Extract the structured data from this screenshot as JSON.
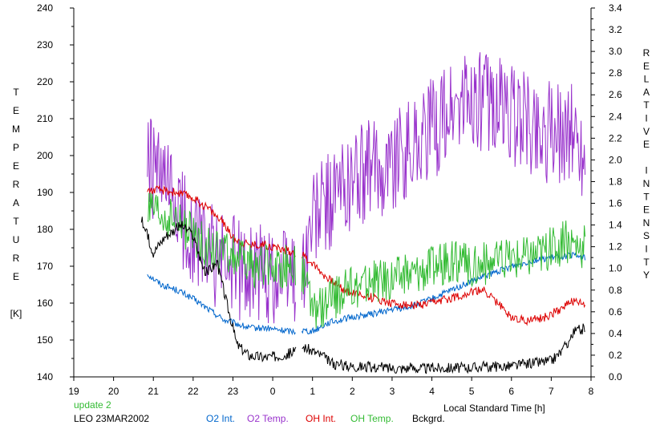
{
  "chart_data": {
    "type": "line",
    "xlabel": "Local Standard Time [h]",
    "ylabel_left": "TEMPERATURE [K]",
    "ylabel_left_lines": [
      "T",
      "E",
      "M",
      "P",
      "E",
      "R",
      "A",
      "T",
      "U",
      "R",
      "E",
      "",
      "[K]"
    ],
    "ylabel_right": "RELATIVE INTENSITY",
    "ylabel_right_lines": [
      "R",
      "E",
      "L",
      "A",
      "T",
      "I",
      "V",
      "E",
      "",
      "I",
      "N",
      "T",
      "E",
      "N",
      "S",
      "I",
      "T",
      "Y"
    ],
    "x_ticks": [
      19,
      20,
      21,
      22,
      23,
      0,
      1,
      2,
      3,
      4,
      5,
      6,
      7,
      8
    ],
    "xlim": [
      19,
      32
    ],
    "ylim_left": [
      140,
      240
    ],
    "y_ticks_left": [
      140,
      150,
      160,
      170,
      180,
      190,
      200,
      210,
      220,
      230,
      240
    ],
    "ylim_right": [
      0,
      3.4
    ],
    "y_ticks_right": [
      "0.0",
      "0.2",
      "0.4",
      "0.6",
      "0.8",
      "1.0",
      "1.2",
      "1.4",
      "1.6",
      "1.8",
      "2.0",
      "2.2",
      "2.4",
      "2.6",
      "2.8",
      "3.0",
      "3.2",
      "3.4"
    ],
    "grid": false,
    "legend_position": "bottom",
    "series": [
      {
        "name": "O2 Int.",
        "color": "#0066cc",
        "axis": "right",
        "noise": 0.03,
        "x": [
          20.85,
          21.2,
          21.6,
          22.0,
          22.4,
          22.8,
          23.0,
          23.4,
          23.8,
          24.2,
          24.5,
          24.75,
          25.0,
          25.4,
          26.0,
          26.5,
          27.0,
          27.5,
          28.0,
          28.5,
          29.0,
          29.5,
          30.0,
          30.5,
          31.0,
          31.5,
          31.85
        ],
        "y": [
          0.95,
          0.85,
          0.8,
          0.72,
          0.62,
          0.52,
          0.5,
          0.45,
          0.45,
          0.43,
          0.42,
          0.43,
          0.42,
          0.5,
          0.55,
          0.58,
          0.62,
          0.65,
          0.72,
          0.8,
          0.88,
          0.95,
          1.02,
          1.07,
          1.1,
          1.12,
          1.1
        ]
      },
      {
        "name": "O2 Temp.",
        "color": "#9933cc",
        "axis": "left",
        "noise": 14,
        "x": [
          20.85,
          21.2,
          21.6,
          22.0,
          22.5,
          23.0,
          23.5,
          24.0,
          24.5,
          24.75,
          25.0,
          25.3,
          25.7,
          26.0,
          26.5,
          27.0,
          27.5,
          28.0,
          28.5,
          29.0,
          29.5,
          30.0,
          30.5,
          31.0,
          31.5,
          31.85
        ],
        "y": [
          198,
          192,
          185,
          178,
          173,
          170,
          168,
          168,
          168,
          168,
          182,
          186,
          190,
          194,
          196,
          199,
          203,
          207,
          212,
          215,
          214,
          211,
          208,
          206,
          207,
          200
        ]
      },
      {
        "name": "OH Int.",
        "color": "#dd0000",
        "axis": "right",
        "noise": 0.04,
        "x": [
          20.85,
          21.2,
          21.6,
          22.0,
          22.4,
          22.8,
          23.0,
          23.4,
          23.8,
          24.2,
          24.5,
          24.75,
          25.0,
          25.4,
          25.8,
          26.2,
          26.6,
          27.0,
          27.4,
          27.8,
          28.2,
          28.6,
          29.0,
          29.3,
          29.6,
          30.0,
          30.4,
          30.8,
          31.2,
          31.5,
          31.85
        ],
        "y": [
          1.72,
          1.72,
          1.7,
          1.65,
          1.55,
          1.4,
          1.28,
          1.22,
          1.22,
          1.18,
          1.15,
          1.12,
          1.05,
          0.9,
          0.8,
          0.76,
          0.72,
          0.68,
          0.66,
          0.66,
          0.7,
          0.74,
          0.78,
          0.8,
          0.7,
          0.55,
          0.52,
          0.54,
          0.62,
          0.7,
          0.66
        ]
      },
      {
        "name": "OH Temp.",
        "color": "#33bb33",
        "axis": "left",
        "noise": 6,
        "x": [
          20.85,
          21.2,
          21.6,
          22.0,
          22.5,
          23.0,
          23.5,
          24.0,
          24.5,
          24.75,
          25.0,
          25.4,
          25.8,
          26.2,
          26.6,
          27.0,
          27.5,
          28.0,
          28.5,
          29.0,
          29.5,
          30.0,
          30.5,
          31.0,
          31.5,
          31.85
        ],
        "y": [
          185,
          183,
          182,
          178,
          174,
          173,
          170,
          170,
          170,
          168,
          158,
          160,
          163,
          165,
          166,
          167,
          168,
          170,
          171,
          170,
          171,
          172,
          173,
          175,
          177,
          175
        ]
      },
      {
        "name": "Bckgrd.",
        "color": "#000000",
        "axis": "right",
        "noise": 0.05,
        "x": [
          20.7,
          21.0,
          21.3,
          21.7,
          22.0,
          22.3,
          22.6,
          22.9,
          23.1,
          23.4,
          23.8,
          24.2,
          24.5,
          24.75,
          25.0,
          25.2,
          25.5,
          26.0,
          27.0,
          28.0,
          29.0,
          30.0,
          30.6,
          31.0,
          31.3,
          31.6,
          31.85
        ],
        "y": [
          1.45,
          1.15,
          1.3,
          1.4,
          1.3,
          0.95,
          1.05,
          0.6,
          0.3,
          0.2,
          0.18,
          0.2,
          0.22,
          0.28,
          0.24,
          0.2,
          0.12,
          0.1,
          0.08,
          0.08,
          0.09,
          0.1,
          0.13,
          0.15,
          0.25,
          0.42,
          0.45
        ]
      }
    ]
  },
  "legend": {
    "update_label": "update 2",
    "site_label": "LEO 23MAR2002"
  },
  "colors": {
    "update_label": "#33bb33",
    "axis": "#000000"
  }
}
